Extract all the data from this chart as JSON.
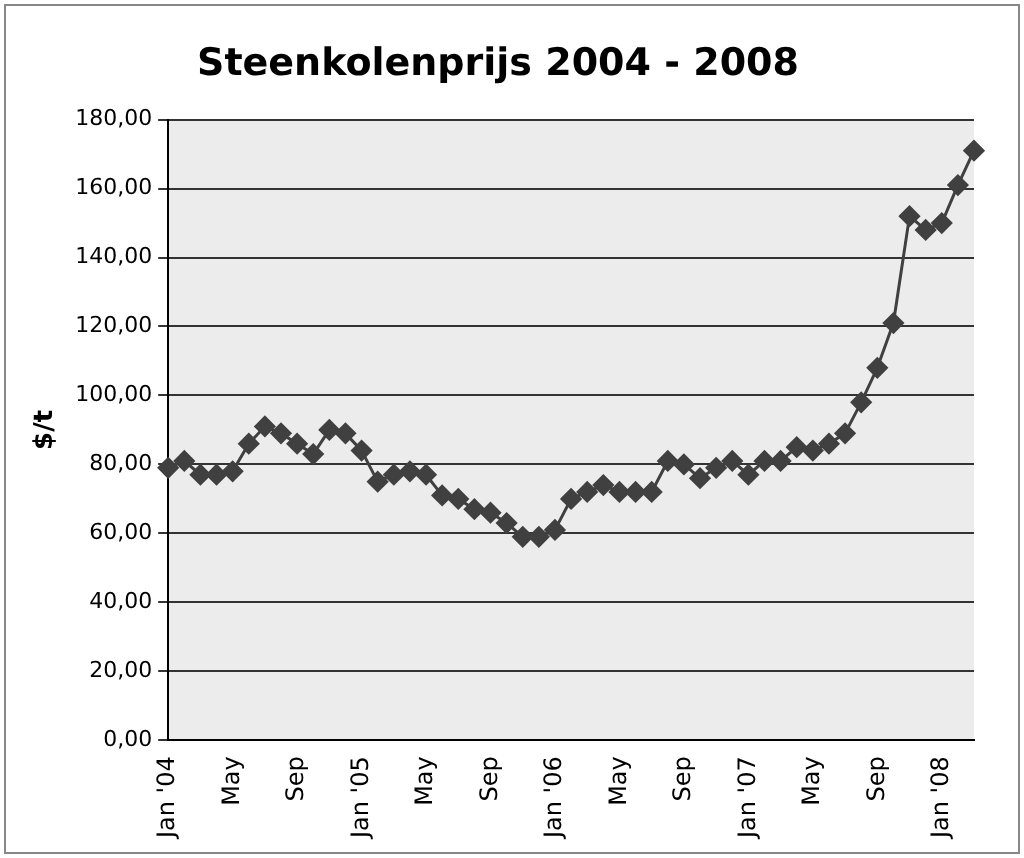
{
  "chart_data": {
    "type": "line",
    "title": "Steenkolenprijs 2004 - 2008",
    "ylabel": "$/t",
    "categories": [
      "Jan '04",
      null,
      null,
      null,
      "May",
      null,
      null,
      null,
      "Sep",
      null,
      null,
      null,
      "Jan '05",
      null,
      null,
      null,
      "May",
      null,
      null,
      null,
      "Sep",
      null,
      null,
      null,
      "Jan '06",
      null,
      null,
      null,
      "May",
      null,
      null,
      null,
      "Sep",
      null,
      null,
      null,
      "Jan '07",
      null,
      null,
      null,
      "May",
      null,
      null,
      null,
      "Sep",
      null,
      null,
      null,
      "Jan '08",
      null,
      null
    ],
    "series": [
      {
        "color": "#404040",
        "values": [
          79,
          81,
          77,
          77,
          78,
          86,
          91,
          89,
          86,
          83,
          90,
          89,
          84,
          75,
          77,
          78,
          77,
          71,
          70,
          67,
          66,
          63,
          59,
          59,
          61,
          70,
          72,
          74,
          72,
          72,
          72,
          81,
          80,
          76,
          79,
          81,
          77,
          81,
          81,
          85,
          84,
          86,
          89,
          98,
          108,
          121,
          152,
          148,
          150,
          161,
          171
        ]
      }
    ],
    "ylim": [
      0,
      180
    ],
    "yticks": [
      {
        "value": 0,
        "label": "0,00"
      },
      {
        "value": 20,
        "label": "20,00"
      },
      {
        "value": 40,
        "label": "40,00"
      },
      {
        "value": 60,
        "label": "60,00"
      },
      {
        "value": 80,
        "label": "80,00"
      },
      {
        "value": 100,
        "label": "100,00"
      },
      {
        "value": 120,
        "label": "120,00"
      },
      {
        "value": 140,
        "label": "140,00"
      },
      {
        "value": 160,
        "label": "160,00"
      },
      {
        "value": 180,
        "label": "180,00"
      }
    ],
    "grid": "y",
    "legend": false,
    "marker": "diamond",
    "line_style": "solid"
  }
}
